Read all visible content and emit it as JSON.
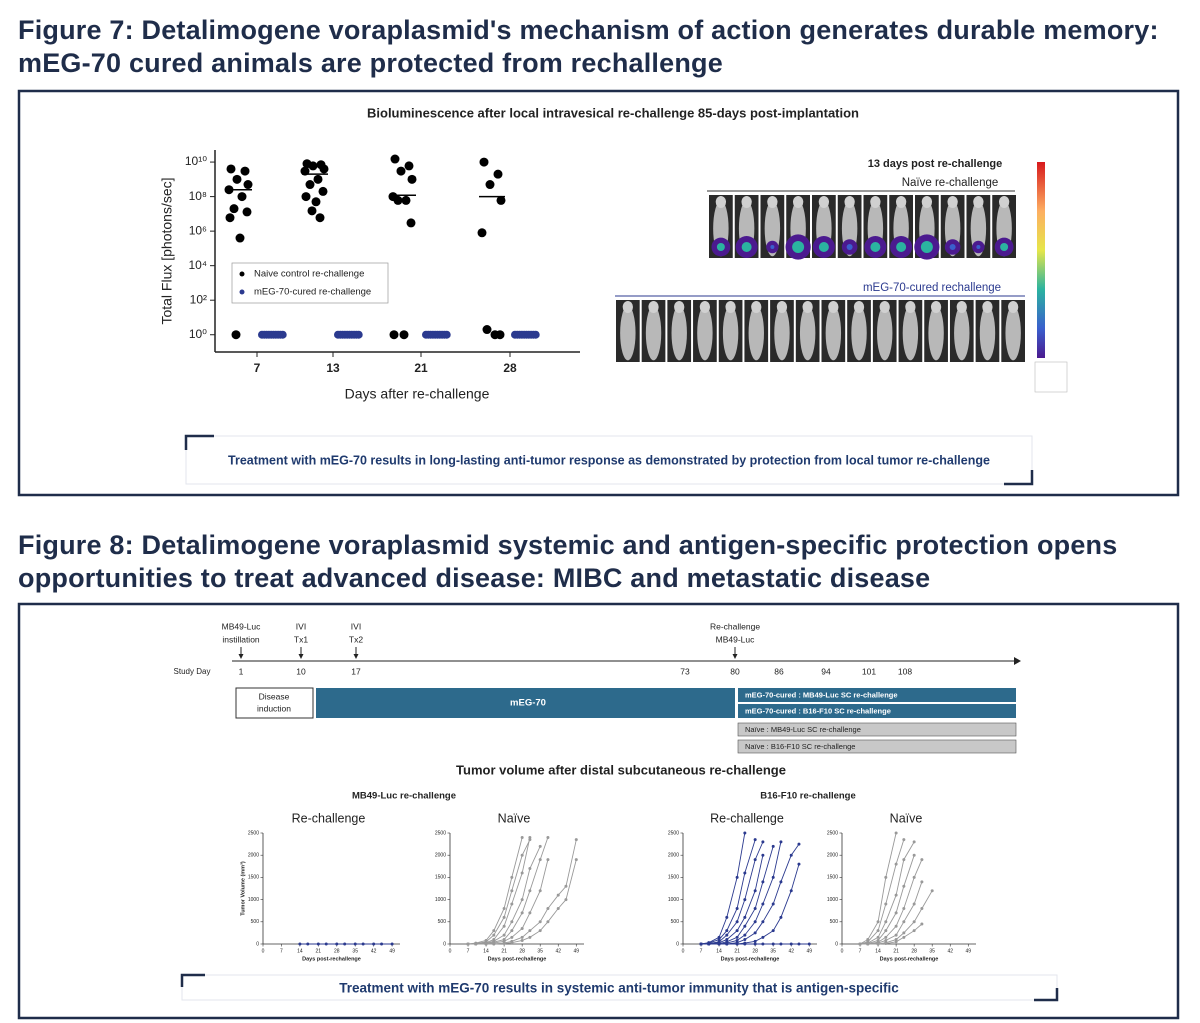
{
  "figure7": {
    "title": "Figure 7: Detalimogene voraplasmid's mechanism of action generates durable memory: mEG-70 cured animals are protected from rechallenge",
    "imaging": {
      "title": "13 days post re-challenge",
      "naive_label": "Naïve re-challenge",
      "cured_label": "mEG-70-cured rechallenge"
    },
    "caption": "Treatment with mEG-70 results in long-lasting anti-tumor response as demonstrated by protection from local tumor re-challenge"
  },
  "figure8": {
    "title": "Figure 8: Detalimogene voraplasmid systemic and antigen-specific protection opens opportunities to treat advanced disease: MIBC and metastatic disease",
    "timeline": {
      "axis_label": "Study Day",
      "days": [
        1,
        10,
        17,
        73,
        80,
        86,
        94,
        101,
        108
      ],
      "events": [
        {
          "lines": [
            "MB49-Luc",
            "instillation"
          ]
        },
        {
          "lines": [
            "IVI",
            "Tx1"
          ]
        },
        {
          "lines": [
            "IVI",
            "Tx2"
          ]
        },
        {
          "lines": [
            "Re-challenge",
            "MB49-Luc"
          ]
        }
      ],
      "phases": [
        {
          "lines": [
            "Disease",
            "induction"
          ]
        },
        {
          "lines": [
            "mEG-70"
          ]
        }
      ],
      "cured_groups": [
        "mEG-70-cured : MB49-Luc SC re-challenge",
        "mEG-70-cured : B16-F10 SC re-challenge"
      ],
      "naive_groups": [
        "Naïve : MB49-Luc SC re-challenge",
        "Naïve : B16-F10 SC re-challenge"
      ]
    },
    "tumor_title": "Tumor volume after distal subcutaneous re-challenge",
    "group_titles": [
      "MB49-Luc re-challenge",
      "B16-F10 re-challenge"
    ],
    "caption": "Treatment with mEG-70 results in systemic anti-tumor immunity that is antigen-specific"
  },
  "chart_data": [
    {
      "type": "scatter",
      "title": "Bioluminescence after local intravesical re-challenge 85-days post-implantation",
      "xlabel": "Days after re-challenge",
      "ylabel": "Total Flux [photons/sec]",
      "categories": [
        7,
        13,
        21,
        28
      ],
      "log_scale": true,
      "ylim": [
        0.1,
        50000000000
      ],
      "yticks": [
        {
          "value": 1,
          "label": "10⁰"
        },
        {
          "value": 100,
          "label": "10²"
        },
        {
          "value": 10000,
          "label": "10⁴"
        },
        {
          "value": 1000000,
          "label": "10⁶"
        },
        {
          "value": 100000000,
          "label": "10⁸"
        },
        {
          "value": 10000000000,
          "label": "10¹⁰"
        }
      ],
      "legend": "center left",
      "series": [
        {
          "name": "Naive control re-challenge",
          "color": "#000000",
          "values": [
            [
              4000000000,
              3000000000,
              1000000000,
              500000000,
              250000000,
              100000000,
              20000000,
              13000000,
              6000000,
              400000,
              1
            ],
            [
              8000000000,
              7000000000,
              6000000000,
              4000000000,
              3000000000,
              1000000000,
              500000000,
              200000000,
              100000000,
              50000000,
              15000000,
              6000000
            ],
            [
              15000000000,
              6000000000,
              3000000000,
              1000000000,
              100000000,
              60000000,
              60000000,
              3000000,
              1,
              1
            ],
            [
              10000000000,
              2000000000,
              500000000,
              60000000,
              800000,
              1,
              2,
              1
            ]
          ]
        },
        {
          "name": "mEG-70-cured re-challenge",
          "color": "#2b3a8f",
          "values": [
            [
              1,
              1,
              1,
              1,
              1,
              1,
              1,
              1,
              1,
              1
            ],
            [
              1,
              1,
              1,
              1,
              1,
              1,
              1,
              1,
              1,
              1
            ],
            [
              1,
              1,
              1,
              1,
              1,
              1,
              1,
              1,
              1,
              1
            ],
            [
              1,
              1,
              1,
              1,
              1,
              1,
              1,
              1,
              1,
              1
            ]
          ]
        }
      ],
      "medians": [
        250000000,
        2000000000,
        120000000,
        100000000
      ]
    },
    {
      "type": "line",
      "title": "Re-challenge",
      "xlabel": "Days post-rechallenge",
      "ylabel": "Tumor Volume (mm³)",
      "x": [
        14,
        17,
        21,
        24,
        28,
        31,
        35,
        38,
        42,
        45,
        49
      ],
      "xlim": [
        0,
        52
      ],
      "ylim": [
        0,
        2500
      ],
      "xticks": [
        0,
        7,
        14,
        21,
        28,
        35,
        42,
        49
      ],
      "yticks": [
        0,
        500,
        1000,
        1500,
        2000,
        2500
      ],
      "series": [
        {
          "color": "#2b3a8f",
          "values": [
            0,
            0,
            0,
            0,
            0,
            0,
            0,
            0,
            0,
            0,
            0
          ]
        }
      ]
    },
    {
      "type": "line",
      "title": "Naïve",
      "xlabel": "Days post-rechallenge",
      "x": [
        7,
        10,
        14,
        17,
        21,
        24,
        28,
        31,
        35,
        38,
        42,
        45,
        49
      ],
      "xlim": [
        0,
        52
      ],
      "ylim": [
        0,
        2500
      ],
      "xticks": [
        0,
        7,
        14,
        21,
        28,
        35,
        42,
        49
      ],
      "yticks": [
        0,
        500,
        1000,
        1500,
        2000,
        2500
      ],
      "series": [
        {
          "color": "#999999",
          "values": [
            0,
            20,
            80,
            300,
            800,
            1500,
            2400,
            null,
            null,
            null,
            null,
            null,
            null
          ]
        },
        {
          "color": "#999999",
          "values": [
            0,
            10,
            50,
            200,
            600,
            1200,
            2000,
            2350,
            null,
            null,
            null,
            null,
            null
          ]
        },
        {
          "color": "#999999",
          "values": [
            0,
            0,
            30,
            100,
            400,
            900,
            1600,
            2400,
            null,
            null,
            null,
            null,
            null
          ]
        },
        {
          "color": "#999999",
          "values": [
            0,
            0,
            20,
            60,
            200,
            500,
            1000,
            1700,
            2200,
            null,
            null,
            null,
            null
          ]
        },
        {
          "color": "#999999",
          "values": [
            0,
            0,
            10,
            40,
            100,
            300,
            700,
            1200,
            1900,
            2400,
            null,
            null,
            null
          ]
        },
        {
          "color": "#999999",
          "values": [
            0,
            0,
            0,
            20,
            60,
            150,
            350,
            700,
            1200,
            1900,
            null,
            null,
            null
          ]
        },
        {
          "color": "#999999",
          "values": [
            0,
            0,
            0,
            0,
            20,
            60,
            150,
            300,
            500,
            800,
            1100,
            1300,
            2350
          ]
        },
        {
          "color": "#999999",
          "values": [
            0,
            0,
            0,
            0,
            10,
            30,
            80,
            150,
            300,
            500,
            800,
            1000,
            1900
          ]
        }
      ]
    },
    {
      "type": "line",
      "title": "Re-challenge",
      "xlabel": "Days post-rechallenge",
      "x": [
        7,
        10,
        14,
        17,
        21,
        24,
        28,
        31,
        35,
        38,
        42,
        45,
        49
      ],
      "xlim": [
        0,
        52
      ],
      "ylim": [
        0,
        2500
      ],
      "xticks": [
        0,
        7,
        14,
        21,
        28,
        35,
        42,
        49
      ],
      "yticks": [
        0,
        500,
        1000,
        1500,
        2000,
        2500
      ],
      "series": [
        {
          "color": "#2b3a8f",
          "values": [
            0,
            30,
            150,
            600,
            1500,
            2500,
            null,
            null,
            null,
            null,
            null,
            null,
            null
          ]
        },
        {
          "color": "#2b3a8f",
          "values": [
            0,
            20,
            100,
            300,
            800,
            1600,
            2350,
            null,
            null,
            null,
            null,
            null,
            null
          ]
        },
        {
          "color": "#2b3a8f",
          "values": [
            0,
            10,
            50,
            200,
            500,
            1000,
            1900,
            2300,
            null,
            null,
            null,
            null,
            null
          ]
        },
        {
          "color": "#2b3a8f",
          "values": [
            0,
            0,
            30,
            100,
            300,
            600,
            1200,
            2000,
            null,
            null,
            null,
            null,
            null
          ]
        },
        {
          "color": "#2b3a8f",
          "values": [
            0,
            0,
            10,
            50,
            150,
            400,
            800,
            1400,
            2200,
            null,
            null,
            null,
            null
          ]
        },
        {
          "color": "#2b3a8f",
          "values": [
            0,
            0,
            0,
            20,
            80,
            200,
            500,
            900,
            1500,
            2300,
            null,
            null,
            null
          ]
        },
        {
          "color": "#2b3a8f",
          "values": [
            0,
            0,
            0,
            0,
            30,
            100,
            250,
            500,
            900,
            1400,
            2000,
            2250,
            null
          ]
        },
        {
          "color": "#2b3a8f",
          "values": [
            0,
            0,
            0,
            0,
            0,
            20,
            60,
            150,
            300,
            600,
            1200,
            1800,
            null
          ]
        },
        {
          "color": "#2b3a8f",
          "values": [
            0,
            0,
            0,
            0,
            0,
            0,
            0,
            0,
            0,
            0,
            0,
            0,
            0
          ]
        }
      ]
    },
    {
      "type": "line",
      "title": "Naïve",
      "xlabel": "Days post-rechallenge",
      "x": [
        7,
        10,
        14,
        17,
        21,
        24,
        28,
        31,
        35
      ],
      "xlim": [
        0,
        52
      ],
      "ylim": [
        0,
        2500
      ],
      "xticks": [
        0,
        7,
        14,
        21,
        28,
        35,
        42,
        49
      ],
      "yticks": [
        0,
        500,
        1000,
        1500,
        2000,
        2500
      ],
      "series": [
        {
          "color": "#999999",
          "values": [
            0,
            100,
            500,
            1500,
            2500,
            null,
            null,
            null,
            null
          ]
        },
        {
          "color": "#999999",
          "values": [
            0,
            50,
            300,
            900,
            1800,
            2350,
            null,
            null,
            null
          ]
        },
        {
          "color": "#999999",
          "values": [
            0,
            20,
            150,
            500,
            1100,
            1900,
            2300,
            null,
            null
          ]
        },
        {
          "color": "#999999",
          "values": [
            0,
            10,
            80,
            300,
            700,
            1300,
            2000,
            null,
            null
          ]
        },
        {
          "color": "#999999",
          "values": [
            0,
            0,
            40,
            150,
            400,
            800,
            1500,
            1900,
            null
          ]
        },
        {
          "color": "#999999",
          "values": [
            0,
            0,
            20,
            80,
            200,
            500,
            900,
            1400,
            null
          ]
        },
        {
          "color": "#999999",
          "values": [
            0,
            0,
            0,
            30,
            100,
            250,
            500,
            800,
            1200
          ]
        },
        {
          "color": "#999999",
          "values": [
            0,
            0,
            0,
            10,
            50,
            150,
            300,
            450,
            null
          ]
        }
      ]
    }
  ]
}
